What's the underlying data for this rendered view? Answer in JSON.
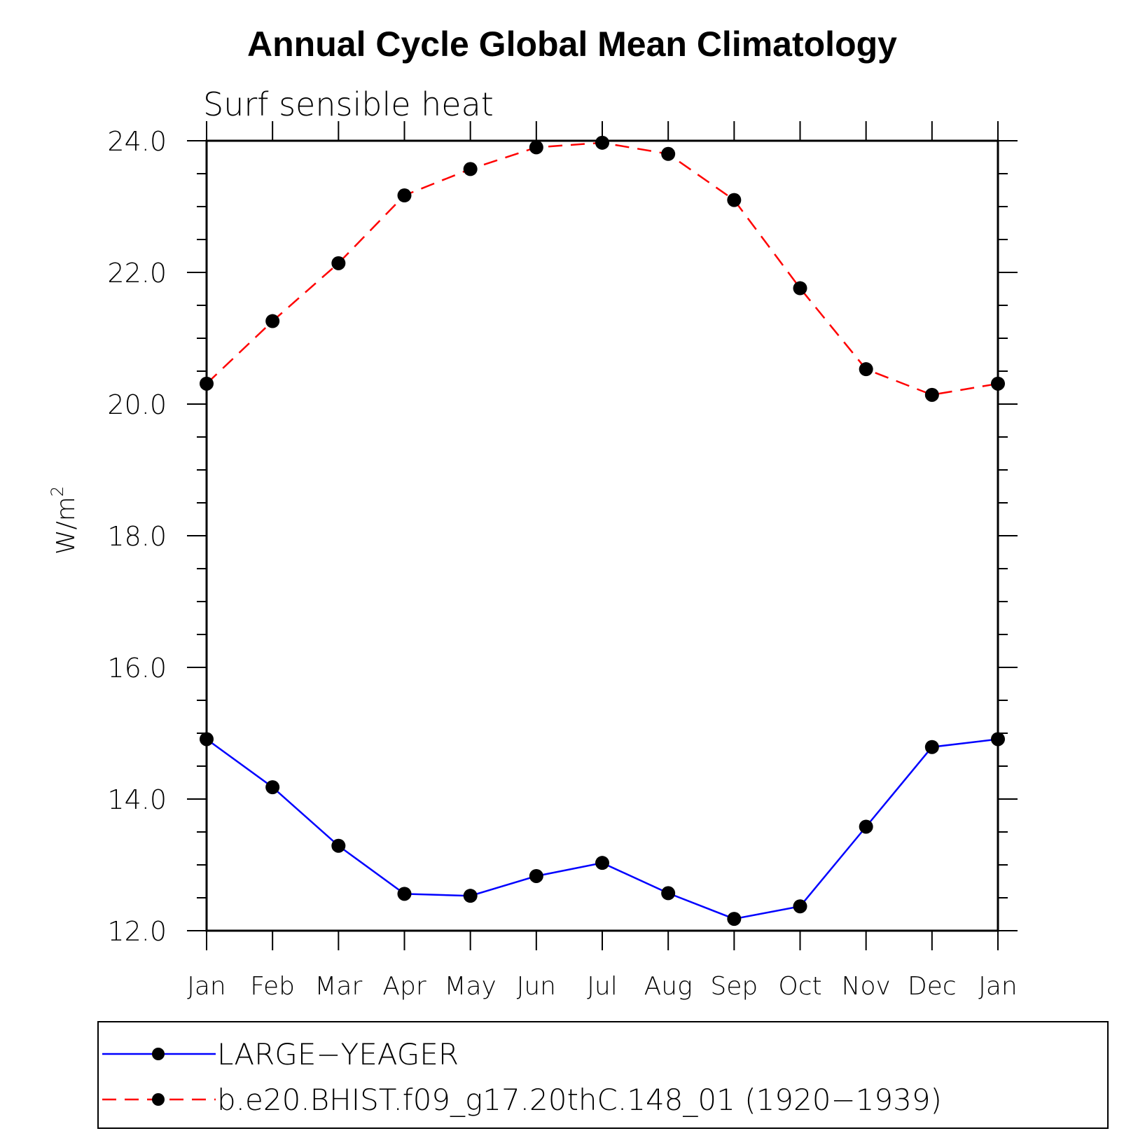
{
  "chart_data": {
    "type": "line",
    "title": "Annual Cycle Global Mean Climatology",
    "subtitle": "Surf sensible heat",
    "ylabel": "W/m",
    "ylabel_superscript": "2",
    "xlabel": "",
    "categories": [
      "Jan",
      "Feb",
      "Mar",
      "Apr",
      "May",
      "Jun",
      "Jul",
      "Aug",
      "Sep",
      "Oct",
      "Nov",
      "Dec",
      "Jan"
    ],
    "ylim": [
      12.0,
      24.0
    ],
    "yticks": [
      "12.0",
      "14.0",
      "16.0",
      "18.0",
      "20.0",
      "22.0",
      "24.0"
    ],
    "grid": false,
    "legend_position": "bottom",
    "series": [
      {
        "name": "LARGE−YEAGER",
        "color": "#0000ff",
        "line_style": "solid",
        "marker": "filled-circle",
        "values": [
          14.91,
          14.18,
          13.29,
          12.56,
          12.53,
          12.83,
          13.03,
          12.57,
          12.18,
          12.37,
          13.58,
          14.79,
          14.91
        ]
      },
      {
        "name": "b.e20.BHIST.f09_g17.20thC.148_01 (1920−1939)",
        "color": "#ff0000",
        "line_style": "dashed",
        "marker": "filled-circle",
        "values": [
          20.31,
          21.26,
          22.14,
          23.17,
          23.57,
          23.9,
          23.97,
          23.8,
          23.1,
          21.76,
          20.53,
          20.14,
          20.31
        ]
      }
    ]
  }
}
